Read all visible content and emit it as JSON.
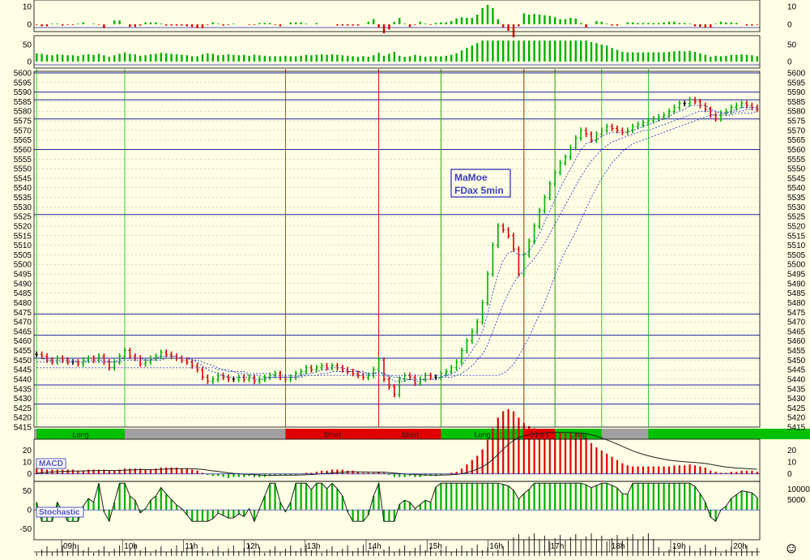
{
  "chart_data": {
    "type": "line",
    "title_lines": [
      "MaMoe",
      "FDax 5min"
    ],
    "colors": {
      "background": "#FFFFE6",
      "up_bar": "#00B000",
      "down_bar": "#E00000",
      "neutral_bar": "#000000",
      "ma_line": "#3040C0",
      "hline": "#2020A0",
      "long_zone": "#00C000",
      "short_zone": "#E00000",
      "label_box": "#5050C0"
    },
    "x_ticks": [
      "09h",
      "10h",
      "11h",
      "12h",
      "13h",
      "14h",
      "15h",
      "16h",
      "17h",
      "18h",
      "19h",
      "20h"
    ],
    "price_pane": {
      "ylim": [
        5415,
        5600
      ],
      "y_ticks": [
        5415,
        5420,
        5425,
        5430,
        5435,
        5440,
        5445,
        5450,
        5455,
        5460,
        5465,
        5470,
        5475,
        5480,
        5485,
        5490,
        5495,
        5500,
        5505,
        5510,
        5515,
        5520,
        5525,
        5530,
        5535,
        5540,
        5545,
        5550,
        5555,
        5560,
        5565,
        5570,
        5575,
        5580,
        5585,
        5590,
        5595,
        5600
      ],
      "levels": [
        5600,
        5590,
        5586,
        5576,
        5560,
        5526,
        5474,
        5463,
        5451,
        5437,
        5427
      ],
      "closes": [
        5453,
        5452,
        5450,
        5449,
        5451,
        5450,
        5449,
        5449,
        5448,
        5450,
        5451,
        5450,
        5452,
        5449,
        5446,
        5449,
        5452,
        5455,
        5452,
        5451,
        5448,
        5449,
        5451,
        5452,
        5454,
        5453,
        5452,
        5451,
        5450,
        5449,
        5447,
        5445,
        5441,
        5439,
        5440,
        5442,
        5441,
        5440,
        5440,
        5441,
        5440,
        5441,
        5439,
        5440,
        5441,
        5442,
        5443,
        5441,
        5440,
        5441,
        5443,
        5444,
        5446,
        5445,
        5446,
        5447,
        5446,
        5447,
        5446,
        5445,
        5444,
        5443,
        5442,
        5441,
        5442,
        5445,
        5450,
        5440,
        5436,
        5432,
        5440,
        5442,
        5441,
        5438,
        5440,
        5442,
        5441,
        5441,
        5443,
        5444,
        5446,
        5449,
        5455,
        5460,
        5465,
        5470,
        5480,
        5495,
        5510,
        5520,
        5518,
        5515,
        5508,
        5495,
        5505,
        5512,
        5520,
        5528,
        5535,
        5542,
        5548,
        5553,
        5556,
        5561,
        5566,
        5570,
        5568,
        5565,
        5568,
        5570,
        5572,
        5571,
        5570,
        5569,
        5570,
        5572,
        5573,
        5574,
        5575,
        5576,
        5577,
        5578,
        5580,
        5582,
        5584,
        5584,
        5586,
        5585,
        5583,
        5581,
        5578,
        5576,
        5579,
        5580,
        5582,
        5583,
        5584,
        5583,
        5582,
        5581
      ],
      "ma_fast": [
        5451,
        5451,
        5450,
        5450,
        5450,
        5450,
        5450,
        5450,
        5449,
        5449,
        5450,
        5450,
        5450,
        5450,
        5449,
        5449,
        5450,
        5451,
        5451,
        5451,
        5451,
        5450,
        5450,
        5451,
        5452,
        5452,
        5452,
        5452,
        5451,
        5451,
        5450,
        5449,
        5447,
        5445,
        5444,
        5443,
        5442,
        5441,
        5441,
        5441,
        5441,
        5441,
        5440,
        5440,
        5440,
        5441,
        5441,
        5441,
        5441,
        5441,
        5441,
        5442,
        5443,
        5443,
        5444,
        5445,
        5445,
        5446,
        5446,
        5446,
        5445,
        5445,
        5444,
        5443,
        5443,
        5443,
        5444,
        5443,
        5441,
        5439,
        5439,
        5439,
        5440,
        5439,
        5439,
        5440,
        5440,
        5440,
        5441,
        5442,
        5443,
        5444,
        5447,
        5451,
        5455,
        5459,
        5465,
        5474,
        5485,
        5495,
        5502,
        5506,
        5507,
        5505,
        5505,
        5507,
        5511,
        5516,
        5522,
        5528,
        5534,
        5540,
        5545,
        5550,
        5555,
        5560,
        5563,
        5564,
        5565,
        5567,
        5568,
        5569,
        5569,
        5569,
        5569,
        5570,
        5571,
        5572,
        5573,
        5574,
        5575,
        5576,
        5577,
        5579,
        5580,
        5581,
        5583,
        5583,
        5583,
        5583,
        5581,
        5580,
        5579,
        5579,
        5580,
        5581,
        5582,
        5582,
        5582,
        5582
      ],
      "ma_mid": [
        5449,
        5449,
        5449,
        5449,
        5449,
        5449,
        5449,
        5449,
        5449,
        5449,
        5449,
        5449,
        5449,
        5449,
        5449,
        5449,
        5449,
        5450,
        5450,
        5450,
        5450,
        5450,
        5450,
        5450,
        5450,
        5451,
        5451,
        5451,
        5451,
        5451,
        5450,
        5450,
        5449,
        5448,
        5447,
        5446,
        5445,
        5444,
        5444,
        5443,
        5443,
        5442,
        5442,
        5442,
        5441,
        5441,
        5441,
        5441,
        5441,
        5441,
        5441,
        5441,
        5442,
        5442,
        5442,
        5443,
        5443,
        5444,
        5444,
        5444,
        5444,
        5444,
        5444,
        5444,
        5443,
        5443,
        5443,
        5443,
        5442,
        5441,
        5441,
        5440,
        5440,
        5440,
        5440,
        5440,
        5440,
        5440,
        5441,
        5441,
        5441,
        5442,
        5443,
        5445,
        5447,
        5450,
        5453,
        5458,
        5465,
        5472,
        5479,
        5485,
        5490,
        5494,
        5497,
        5500,
        5503,
        5507,
        5511,
        5516,
        5521,
        5526,
        5531,
        5536,
        5541,
        5546,
        5550,
        5554,
        5557,
        5560,
        5562,
        5564,
        5565,
        5566,
        5567,
        5568,
        5569,
        5570,
        5570,
        5571,
        5572,
        5573,
        5574,
        5575,
        5576,
        5577,
        5578,
        5579,
        5580,
        5580,
        5580,
        5580,
        5579,
        5579,
        5579,
        5580,
        5580,
        5581,
        5581,
        5581
      ],
      "ma_slow": [
        5446,
        5446,
        5446,
        5446,
        5446,
        5446,
        5446,
        5446,
        5446,
        5446,
        5446,
        5446,
        5446,
        5446,
        5446,
        5446,
        5446,
        5446,
        5446,
        5446,
        5446,
        5446,
        5446,
        5446,
        5446,
        5446,
        5446,
        5446,
        5446,
        5446,
        5446,
        5446,
        5446,
        5446,
        5446,
        5445,
        5445,
        5445,
        5444,
        5444,
        5444,
        5443,
        5443,
        5443,
        5443,
        5443,
        5442,
        5442,
        5442,
        5442,
        5442,
        5442,
        5442,
        5442,
        5442,
        5442,
        5442,
        5442,
        5442,
        5442,
        5442,
        5442,
        5442,
        5442,
        5442,
        5442,
        5442,
        5442,
        5442,
        5442,
        5442,
        5442,
        5442,
        5442,
        5442,
        5442,
        5442,
        5442,
        5442,
        5442,
        5442,
        5442,
        5442,
        5442,
        5442,
        5442,
        5442,
        5442,
        5442,
        5442,
        5443,
        5445,
        5448,
        5452,
        5457,
        5462,
        5468,
        5474,
        5480,
        5487,
        5494,
        5501,
        5507,
        5512,
        5517,
        5523,
        5529,
        5535,
        5540,
        5545,
        5549,
        5553,
        5556,
        5559,
        5561,
        5563,
        5564,
        5565,
        5566,
        5567,
        5568,
        5569,
        5570,
        5571,
        5572,
        5573,
        5574,
        5575,
        5576,
        5577,
        5578,
        5578,
        5578,
        5578,
        5578,
        5579,
        5579,
        5579,
        5579,
        5580
      ],
      "signals": [
        {
          "side": "long",
          "label": "Long",
          "from": 0,
          "to": 17
        },
        {
          "side": "short",
          "label": "Short",
          "from": 48,
          "to": 66
        },
        {
          "side": "short",
          "label": "Short",
          "from": 66,
          "to": 78
        },
        {
          "side": "long",
          "label": "Long",
          "from": 78,
          "to": 94
        },
        {
          "side": "short",
          "label": "Short",
          "from": 94,
          "to": 100
        },
        {
          "side": "long",
          "label": "Long",
          "from": 100,
          "to": 109
        },
        {
          "side": "long",
          "label": "Long",
          "from": 118,
          "to": 239
        }
      ]
    },
    "macd_pane": {
      "label": "MACD",
      "ylim": [
        -5,
        28
      ],
      "y_ticks": [
        0,
        10,
        20
      ],
      "right_ticks": [
        0,
        10,
        20
      ]
    },
    "stoch_pane": {
      "label": "Stochastic",
      "ylim": [
        -70,
        75
      ],
      "y_ticks": [
        -50,
        0,
        50
      ],
      "right_ticks": [
        5000,
        10000
      ]
    },
    "top_pane_1": {
      "y_ticks": [
        0,
        10
      ],
      "right_ticks": [
        0,
        10
      ]
    },
    "top_pane_2": {
      "y_ticks": [
        0,
        50
      ],
      "right_ticks": [
        0,
        50
      ]
    }
  }
}
